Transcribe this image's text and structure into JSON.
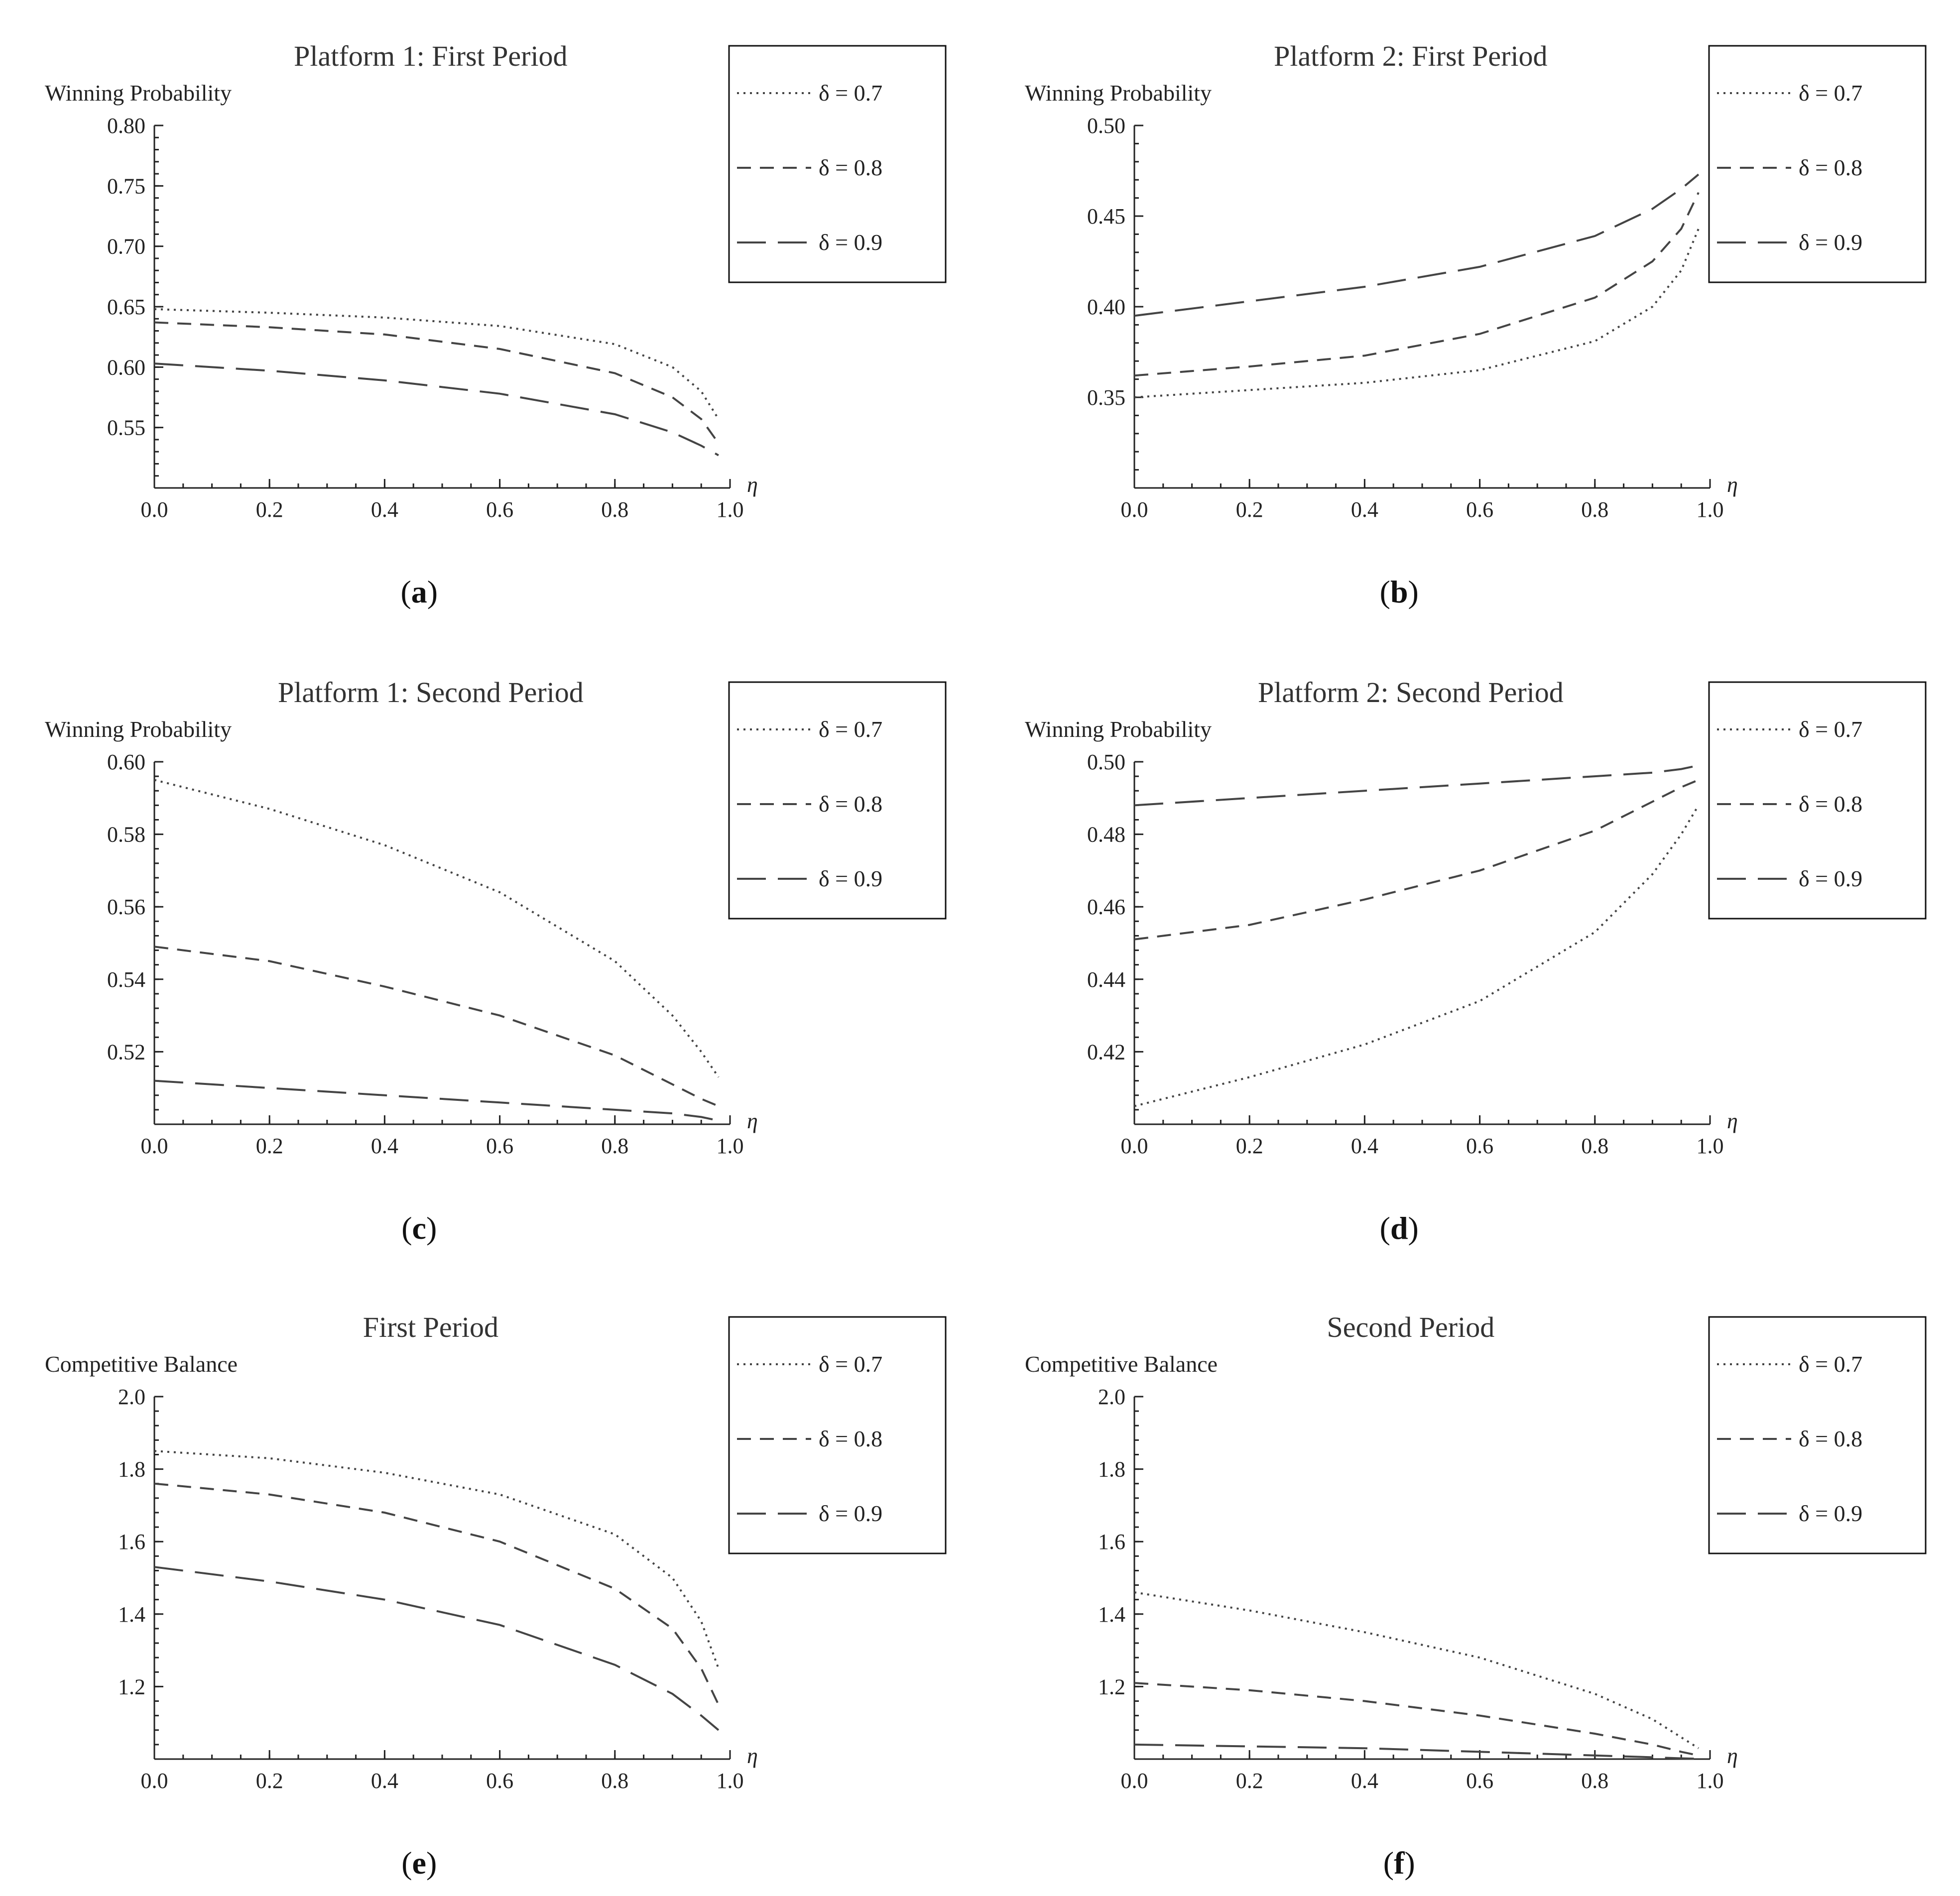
{
  "chart_data": [
    {
      "id": "a",
      "type": "line",
      "title": "Platform 1: First Period",
      "ylabel": "Winning Probability",
      "xlabel": "η",
      "caption": "a",
      "xlim": [
        0,
        1.0
      ],
      "ylim": [
        0.5,
        0.8
      ],
      "xticks": [
        "0.0",
        "0.2",
        "0.4",
        "0.6",
        "0.8",
        "1.0"
      ],
      "yticks": [
        "0.55",
        "0.60",
        "0.65",
        "0.70",
        "0.75",
        "0.80"
      ],
      "series": [
        {
          "name": "δ = 0.7",
          "style": "dotted",
          "x": [
            0,
            0.2,
            0.4,
            0.6,
            0.8,
            0.9,
            0.95,
            0.98
          ],
          "values": [
            0.648,
            0.645,
            0.641,
            0.634,
            0.619,
            0.6,
            0.58,
            0.557
          ]
        },
        {
          "name": "δ = 0.8",
          "style": "dashed",
          "x": [
            0,
            0.2,
            0.4,
            0.6,
            0.8,
            0.9,
            0.95,
            0.98
          ],
          "values": [
            0.637,
            0.633,
            0.627,
            0.615,
            0.595,
            0.575,
            0.557,
            0.537
          ]
        },
        {
          "name": "δ = 0.9",
          "style": "longdash",
          "x": [
            0,
            0.2,
            0.4,
            0.6,
            0.8,
            0.9,
            0.95,
            0.98
          ],
          "values": [
            0.603,
            0.597,
            0.589,
            0.578,
            0.561,
            0.546,
            0.535,
            0.527
          ]
        }
      ]
    },
    {
      "id": "b",
      "type": "line",
      "title": "Platform 2: First Period",
      "ylabel": "Winning Probability",
      "xlabel": "η",
      "caption": "b",
      "xlim": [
        0,
        1.0
      ],
      "ylim": [
        0.3,
        0.5
      ],
      "xticks": [
        "0.0",
        "0.2",
        "0.4",
        "0.6",
        "0.8",
        "1.0"
      ],
      "yticks": [
        "0.35",
        "0.40",
        "0.45",
        "0.50"
      ],
      "series": [
        {
          "name": "δ = 0.7",
          "style": "dotted",
          "x": [
            0,
            0.2,
            0.4,
            0.6,
            0.8,
            0.9,
            0.95,
            0.98
          ],
          "values": [
            0.35,
            0.354,
            0.358,
            0.365,
            0.381,
            0.4,
            0.42,
            0.443
          ]
        },
        {
          "name": "δ = 0.8",
          "style": "dashed",
          "x": [
            0,
            0.2,
            0.4,
            0.6,
            0.8,
            0.9,
            0.95,
            0.98
          ],
          "values": [
            0.362,
            0.367,
            0.373,
            0.385,
            0.405,
            0.425,
            0.443,
            0.463
          ]
        },
        {
          "name": "δ = 0.9",
          "style": "longdash",
          "x": [
            0,
            0.2,
            0.4,
            0.6,
            0.8,
            0.9,
            0.95,
            0.98
          ],
          "values": [
            0.395,
            0.403,
            0.411,
            0.422,
            0.439,
            0.454,
            0.465,
            0.473
          ]
        }
      ]
    },
    {
      "id": "c",
      "type": "line",
      "title": "Platform 1: Second Period",
      "ylabel": "Winning Probability",
      "xlabel": "η",
      "caption": "c",
      "xlim": [
        0,
        1.0
      ],
      "ylim": [
        0.5,
        0.6
      ],
      "xticks": [
        "0.0",
        "0.2",
        "0.4",
        "0.6",
        "0.8",
        "1.0"
      ],
      "yticks": [
        "0.52",
        "0.54",
        "0.56",
        "0.58",
        "0.60"
      ],
      "series": [
        {
          "name": "δ = 0.7",
          "style": "dotted",
          "x": [
            0,
            0.2,
            0.4,
            0.6,
            0.8,
            0.9,
            0.95,
            0.98
          ],
          "values": [
            0.595,
            0.587,
            0.577,
            0.564,
            0.545,
            0.53,
            0.52,
            0.513
          ]
        },
        {
          "name": "δ = 0.8",
          "style": "dashed",
          "x": [
            0,
            0.2,
            0.4,
            0.6,
            0.8,
            0.9,
            0.95,
            0.98
          ],
          "values": [
            0.549,
            0.545,
            0.538,
            0.53,
            0.519,
            0.511,
            0.507,
            0.505
          ]
        },
        {
          "name": "δ = 0.9",
          "style": "longdash",
          "x": [
            0,
            0.2,
            0.4,
            0.6,
            0.8,
            0.9,
            0.95,
            0.98
          ],
          "values": [
            0.512,
            0.51,
            0.508,
            0.506,
            0.504,
            0.503,
            0.502,
            0.501
          ]
        }
      ]
    },
    {
      "id": "d",
      "type": "line",
      "title": "Platform 2: Second Period",
      "ylabel": "Winning Probability",
      "xlabel": "η",
      "caption": "d",
      "xlim": [
        0,
        1.0
      ],
      "ylim": [
        0.4,
        0.5
      ],
      "xticks": [
        "0.0",
        "0.2",
        "0.4",
        "0.6",
        "0.8",
        "1.0"
      ],
      "yticks": [
        "0.42",
        "0.44",
        "0.46",
        "0.48",
        "0.50"
      ],
      "series": [
        {
          "name": "δ = 0.7",
          "style": "dotted",
          "x": [
            0,
            0.2,
            0.4,
            0.6,
            0.8,
            0.9,
            0.95,
            0.98
          ],
          "values": [
            0.405,
            0.413,
            0.422,
            0.434,
            0.453,
            0.469,
            0.48,
            0.488
          ]
        },
        {
          "name": "δ = 0.8",
          "style": "dashed",
          "x": [
            0,
            0.2,
            0.4,
            0.6,
            0.8,
            0.9,
            0.95,
            0.98
          ],
          "values": [
            0.451,
            0.455,
            0.462,
            0.47,
            0.481,
            0.489,
            0.493,
            0.495
          ]
        },
        {
          "name": "δ = 0.9",
          "style": "longdash",
          "x": [
            0,
            0.2,
            0.4,
            0.6,
            0.8,
            0.9,
            0.95,
            0.98
          ],
          "values": [
            0.488,
            0.49,
            0.492,
            0.494,
            0.496,
            0.497,
            0.498,
            0.499
          ]
        }
      ]
    },
    {
      "id": "e",
      "type": "line",
      "title": "First Period",
      "ylabel": "Competitive Balance",
      "xlabel": "η",
      "caption": "e",
      "xlim": [
        0,
        1.0
      ],
      "ylim": [
        1.0,
        2.0
      ],
      "xticks": [
        "0.0",
        "0.2",
        "0.4",
        "0.6",
        "0.8",
        "1.0"
      ],
      "yticks": [
        "1.2",
        "1.4",
        "1.6",
        "1.8",
        "2.0"
      ],
      "series": [
        {
          "name": "δ = 0.7",
          "style": "dotted",
          "x": [
            0,
            0.2,
            0.4,
            0.6,
            0.8,
            0.9,
            0.95,
            0.98
          ],
          "values": [
            1.85,
            1.83,
            1.79,
            1.73,
            1.62,
            1.5,
            1.38,
            1.25
          ]
        },
        {
          "name": "δ = 0.8",
          "style": "dashed",
          "x": [
            0,
            0.2,
            0.4,
            0.6,
            0.8,
            0.9,
            0.95,
            0.98
          ],
          "values": [
            1.76,
            1.73,
            1.68,
            1.6,
            1.47,
            1.36,
            1.25,
            1.15
          ]
        },
        {
          "name": "δ = 0.9",
          "style": "longdash",
          "x": [
            0,
            0.2,
            0.4,
            0.6,
            0.8,
            0.9,
            0.95,
            0.98
          ],
          "values": [
            1.53,
            1.49,
            1.44,
            1.37,
            1.26,
            1.18,
            1.12,
            1.08
          ]
        }
      ]
    },
    {
      "id": "f",
      "type": "line",
      "title": "Second Period",
      "ylabel": "Competitive Balance",
      "xlabel": "η",
      "caption": "f",
      "xlim": [
        0,
        1.0
      ],
      "ylim": [
        1.0,
        2.0
      ],
      "xticks": [
        "0.0",
        "0.2",
        "0.4",
        "0.6",
        "0.8",
        "1.0"
      ],
      "yticks": [
        "1.2",
        "1.4",
        "1.6",
        "1.8",
        "2.0"
      ],
      "series": [
        {
          "name": "δ = 0.7",
          "style": "dotted",
          "x": [
            0,
            0.2,
            0.4,
            0.6,
            0.8,
            0.9,
            0.95,
            0.98
          ],
          "values": [
            1.46,
            1.41,
            1.35,
            1.28,
            1.18,
            1.11,
            1.06,
            1.03
          ]
        },
        {
          "name": "δ = 0.8",
          "style": "dashed",
          "x": [
            0,
            0.2,
            0.4,
            0.6,
            0.8,
            0.9,
            0.95,
            0.98
          ],
          "values": [
            1.21,
            1.19,
            1.16,
            1.12,
            1.07,
            1.04,
            1.02,
            1.01
          ]
        },
        {
          "name": "δ = 0.9",
          "style": "longdash",
          "x": [
            0,
            0.2,
            0.4,
            0.6,
            0.8,
            0.9,
            0.95,
            0.98
          ],
          "values": [
            1.04,
            1.035,
            1.03,
            1.02,
            1.01,
            1.005,
            1.002,
            1.001
          ]
        }
      ]
    }
  ]
}
